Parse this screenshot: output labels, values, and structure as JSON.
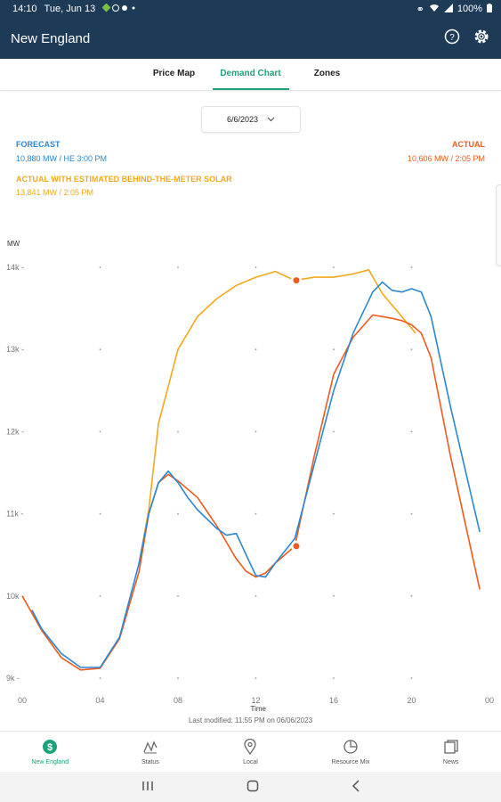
{
  "status_bar": {
    "time": "14:10",
    "date": "Tue, Jun 13",
    "battery": "100%"
  },
  "header": {
    "title": "New England"
  },
  "tabs": [
    {
      "label": "Price Map",
      "active": false
    },
    {
      "label": "Demand Chart",
      "active": true
    },
    {
      "label": "Zones",
      "active": false
    }
  ],
  "date_picker": {
    "value": "6/6/2023"
  },
  "legend": {
    "forecast": {
      "label": "FORECAST",
      "value": "10,880 MW / HE 3:00 PM",
      "color": "#2b87d1"
    },
    "actual": {
      "label": "ACTUAL",
      "value": "10,606 MW / 2:05 PM",
      "color": "#f05a1c"
    },
    "btm": {
      "label": "ACTUAL WITH ESTIMATED BEHIND-THE-METER SOLAR",
      "value": "13,841 MW / 2:05 PM",
      "color": "#f5a81c"
    }
  },
  "chart_data": {
    "type": "line",
    "ylabel": "MW",
    "xlabel": "Time",
    "ylim": [
      9000,
      14000
    ],
    "xlim": [
      0,
      24
    ],
    "y_ticks": [
      "14k",
      "13k",
      "12k",
      "11k",
      "10k",
      "9k"
    ],
    "x_ticks": [
      "00",
      "04",
      "08",
      "12",
      "16",
      "20",
      "00"
    ],
    "series": [
      {
        "name": "FORECAST",
        "color": "#2b87d1",
        "x": [
          0.5,
          1,
          2,
          3,
          4,
          5,
          6,
          6.5,
          7,
          7.5,
          8,
          8.5,
          9,
          10,
          10.5,
          11,
          11.5,
          12,
          12.5,
          13,
          14,
          15,
          16,
          17,
          18,
          18.5,
          19,
          19.5,
          20,
          20.5,
          21,
          22,
          23.5
        ],
        "y": [
          9830,
          9600,
          9300,
          9130,
          9130,
          9500,
          10400,
          11000,
          11380,
          11520,
          11380,
          11200,
          11050,
          10820,
          10740,
          10760,
          10500,
          10250,
          10230,
          10400,
          10700,
          11600,
          12500,
          13200,
          13700,
          13820,
          13720,
          13700,
          13740,
          13700,
          13400,
          12300,
          10780
        ]
      },
      {
        "name": "ACTUAL",
        "color": "#f05a1c",
        "x": [
          0,
          1,
          2,
          3,
          4,
          5,
          6,
          6.5,
          7,
          7.5,
          8,
          9,
          10,
          11,
          11.5,
          12,
          12.5,
          13,
          14,
          15,
          16,
          17,
          18,
          18.5,
          19,
          19.5,
          20,
          20.5,
          21,
          22,
          23.5
        ],
        "y": [
          10000,
          9580,
          9250,
          9100,
          9120,
          9480,
          10300,
          11000,
          11380,
          11480,
          11400,
          11200,
          10850,
          10450,
          10300,
          10230,
          10280,
          10400,
          10606,
          11700,
          12700,
          13150,
          13420,
          13400,
          13380,
          13350,
          13300,
          13200,
          12900,
          11700,
          10080
        ]
      },
      {
        "name": "ACTUAL WITH ESTIMATED BEHIND-THE-METER SOLAR",
        "color": "#f5a81c",
        "x": [
          6,
          6.5,
          7,
          8,
          9,
          10,
          11,
          12,
          13,
          14,
          15,
          16,
          17,
          17.8,
          18.5,
          19.5,
          20.2
        ],
        "y": [
          10400,
          11050,
          12100,
          13000,
          13400,
          13620,
          13780,
          13880,
          13950,
          13841,
          13880,
          13880,
          13920,
          13970,
          13680,
          13400,
          13200
        ]
      }
    ],
    "markers": [
      {
        "series": "ACTUAL WITH ESTIMATED BEHIND-THE-METER SOLAR",
        "x": 14.08,
        "y": 13841
      },
      {
        "series": "ACTUAL",
        "x": 14.08,
        "y": 10606
      }
    ]
  },
  "footer": {
    "last_modified": "Last modified: 11:55 PM on 06/06/2023"
  },
  "bottom_nav": [
    {
      "label": "New England",
      "icon": "dollar-icon",
      "active": true
    },
    {
      "label": "Status",
      "icon": "status-icon",
      "active": false
    },
    {
      "label": "Local",
      "icon": "location-pin-icon",
      "active": false
    },
    {
      "label": "Resource Mix",
      "icon": "pie-chart-icon",
      "active": false
    },
    {
      "label": "News",
      "icon": "news-icon",
      "active": false
    }
  ]
}
